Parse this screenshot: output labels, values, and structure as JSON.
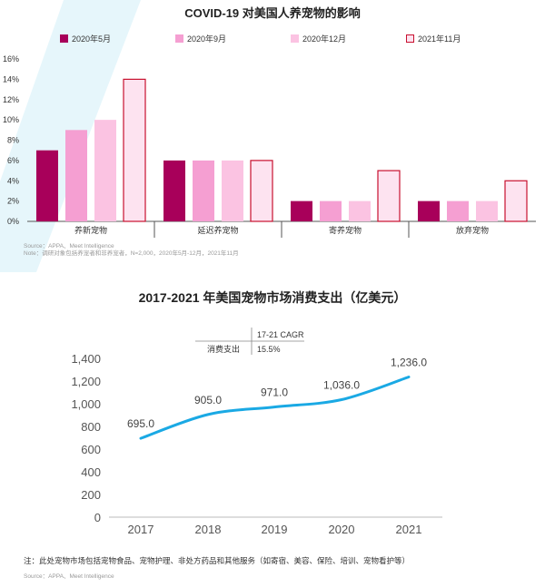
{
  "chart_data": [
    {
      "type": "bar",
      "title": "COVID-19 对美国人养宠物的影响",
      "categories": [
        "养新宠物",
        "延迟养宠物",
        "寄养宠物",
        "放弃宠物"
      ],
      "series": [
        {
          "name": "2020年5月",
          "values": [
            7,
            6,
            2,
            2
          ],
          "color": "#a8005a"
        },
        {
          "name": "2020年9月",
          "values": [
            9,
            6,
            2,
            2
          ],
          "color": "#f59fd2"
        },
        {
          "name": "2020年12月",
          "values": [
            10,
            6,
            2,
            2
          ],
          "color": "#fbc3e2"
        },
        {
          "name": "2021年11月",
          "values": [
            14,
            6,
            5,
            4
          ],
          "color": "#fde3f0",
          "border": "#c8102e"
        }
      ],
      "y_ticks": [
        "0%",
        "2%",
        "4%",
        "6%",
        "8%",
        "10%",
        "12%",
        "14%",
        "16%"
      ],
      "ylim": [
        0,
        16
      ],
      "source_lines": [
        "Source：APPA、Meet Intelligence",
        "Note：调研对象包括养宠者和非养宠者，N=2,000，2020年5月-12月，2021年11月"
      ]
    },
    {
      "type": "line",
      "title": "2017-2021 年美国宠物市场消费支出（亿美元）",
      "x": [
        "2017",
        "2018",
        "2019",
        "2020",
        "2021"
      ],
      "values": [
        695.0,
        905.0,
        971.0,
        1036.0,
        1236.0
      ],
      "data_labels": [
        "695.0",
        "905.0",
        "971.0",
        "1,036.0",
        "1,236.0"
      ],
      "y_ticks": [
        "0",
        "200",
        "400",
        "600",
        "800",
        "1,000",
        "1,200",
        "1,400"
      ],
      "ylim": [
        0,
        1400
      ],
      "color": "#1aa9e4",
      "cagr_table": {
        "header": "17-21 CAGR",
        "label": "消费支出",
        "value": "15.5%"
      },
      "note": "注：此处宠物市场包括宠物食品、宠物护理、非处方药品和其他服务（如寄宿、美容、保险、培训、宠物看护等）",
      "source": "Source：APPA、Meet Intelligence"
    }
  ]
}
